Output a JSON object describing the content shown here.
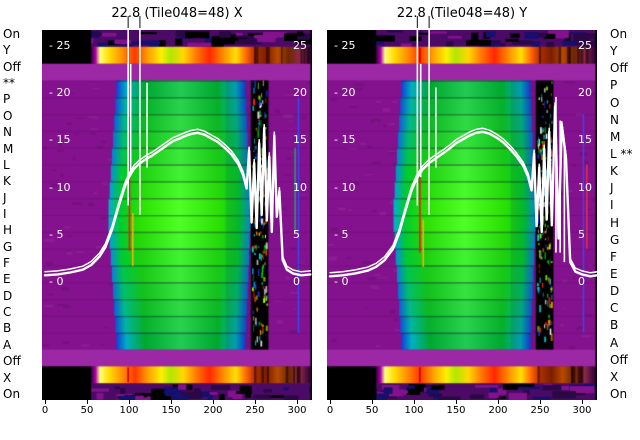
{
  "figure": {
    "bg_color": "#ffffff",
    "titles": [
      "22.8 (Tile048=48) X",
      "22.8 (Tile048=48) Y"
    ],
    "left_row_labels": [
      "On",
      "Y",
      "Off",
      "**",
      "P",
      "O",
      "N",
      "M",
      "L",
      "K",
      "J",
      "I",
      "H",
      "G",
      "F",
      "E",
      "D",
      "C",
      "B",
      "A",
      "Off",
      "X",
      "On"
    ],
    "right_row_labels": [
      "On",
      "Y",
      "Off",
      "P",
      "O",
      "N",
      "M",
      "L **",
      "K",
      "J",
      "I",
      "H",
      "G",
      "F",
      "E",
      "D",
      "C",
      "B",
      "A",
      "Off",
      "X",
      "On"
    ],
    "y_tick_values": [
      25,
      20,
      15,
      10,
      5,
      0
    ],
    "y_tick_labels_inner": [
      "- 25",
      "- 20",
      "- 15",
      "- 10",
      "- 5",
      "- 0"
    ],
    "y_tick_labels_edge": [
      "25",
      "20",
      "15",
      "10",
      "5",
      "0"
    ],
    "x_tick_values": [
      0,
      50,
      100,
      150,
      200,
      250,
      300
    ],
    "x_tick_labels": [
      "0",
      "50",
      "100",
      "150",
      "200",
      "250",
      "300"
    ]
  },
  "heatmap": {
    "row_count": 22,
    "green_x": [
      75,
      245
    ],
    "band_x": [
      245,
      266
    ],
    "right_edge_x": 316,
    "left_black_x": 55,
    "colors": {
      "purple": "#84128e",
      "purple_light": "#9d28a6",
      "on_base": "#4b0a66",
      "black": "#000000",
      "blob_edge_outer": "#1040d8",
      "blob_edge_inner": "#00b8d8",
      "blob_mid_outer": "#00b0c0",
      "blob_mid_inner": "#00cc30",
      "blob_center_outer": "#00a830",
      "blob_center_inner": "#2fe400",
      "speckles": [
        "#00d000",
        "#00a0ff",
        "#ff2000",
        "#00e0e0",
        "#ff9000",
        "#2040ff",
        "#a0ff00",
        "#ffffff"
      ]
    },
    "rainbow_stops": [
      [
        0,
        "#38003a"
      ],
      [
        0.02,
        "#b000b0"
      ],
      [
        0.04,
        "#ffff80"
      ],
      [
        0.08,
        "#ffe000"
      ],
      [
        0.14,
        "#ff9000"
      ],
      [
        0.2,
        "#ff3800"
      ],
      [
        0.26,
        "#ffa000"
      ],
      [
        0.32,
        "#fff000"
      ],
      [
        0.36,
        "#b0e800"
      ],
      [
        0.42,
        "#ffd800"
      ],
      [
        0.48,
        "#ff7800"
      ],
      [
        0.54,
        "#ff2800"
      ],
      [
        0.6,
        "#ff8800"
      ],
      [
        0.66,
        "#ffe000"
      ],
      [
        0.71,
        "#ff6000"
      ],
      [
        0.745,
        "#b03000"
      ],
      [
        0.8,
        "#7c1e00"
      ],
      [
        0.85,
        "#b84a00"
      ],
      [
        0.9,
        "#6e2800"
      ],
      [
        0.95,
        "#8c2a4a"
      ],
      [
        1,
        "#320038"
      ]
    ]
  },
  "chart_data": [
    {
      "type": "heatmap",
      "title": "22.8 (Tile048=48) X",
      "x_range": [
        0,
        320
      ],
      "line_y_range": [
        0,
        25
      ],
      "x_ticks": [
        0,
        50,
        100,
        150,
        200,
        250,
        300
      ],
      "y_ticks": [
        25,
        20,
        15,
        10,
        5,
        0
      ],
      "rows": [
        "On",
        "Y",
        "Off",
        "P",
        "O",
        "N",
        "M",
        "L",
        "K",
        "J",
        "I",
        "H",
        "G",
        "F",
        "E",
        "D",
        "C",
        "B",
        "A",
        "Off",
        "X",
        "On"
      ],
      "line": {
        "x": [
          0,
          15,
          30,
          45,
          55,
          65,
          72,
          80,
          88,
          95,
          100,
          106,
          112,
          120,
          128,
          136,
          144,
          152,
          160,
          168,
          175,
          182,
          190,
          198,
          206,
          214,
          222,
          230,
          236,
          240,
          243,
          246,
          249,
          252,
          255,
          258,
          261,
          264,
          267,
          270,
          273,
          276,
          279,
          283,
          288,
          295,
          305,
          316
        ],
        "y": [
          0.6,
          0.7,
          0.9,
          1.2,
          1.7,
          2.6,
          3.6,
          5.5,
          8.0,
          10.0,
          11.0,
          11.9,
          12.4,
          12.9,
          13.3,
          13.8,
          14.3,
          14.8,
          15.1,
          15.4,
          15.6,
          15.7,
          15.5,
          15.1,
          14.7,
          14.1,
          13.4,
          12.4,
          11.2,
          9.8,
          13.8,
          6.2,
          12.5,
          5.6,
          14.6,
          7.0,
          16.2,
          6.4,
          13.2,
          5.2,
          15.4,
          6.8,
          9.5,
          2.2,
          1.2,
          0.8,
          0.6,
          0.7
        ]
      },
      "spikes": [
        {
          "x": 99,
          "v0": 8,
          "v1": 26.6
        },
        {
          "x": 102,
          "v0": 11.5,
          "v1": 23
        },
        {
          "x": 113,
          "v0": 7,
          "v1": 26.6
        },
        {
          "x": 121.5,
          "v0": 12,
          "v1": 21
        }
      ],
      "overflow_marks": [
        99,
        113
      ],
      "rfi_lines": [
        {
          "x": 100.5,
          "v0": 3.2,
          "v1": 17.4,
          "color": "#ff1010"
        },
        {
          "x": 104.5,
          "v0": 1.6,
          "v1": 7.2,
          "color": "#ffb000"
        }
      ],
      "right_lines": [
        {
          "x": 301,
          "r0": 4,
          "r1": 18,
          "color": "#2850ff"
        },
        {
          "x": 297,
          "r0": 7,
          "r1": 12,
          "color": "#00c060"
        }
      ],
      "band_tick_x": [
        99
      ],
      "seed": 11
    },
    {
      "type": "heatmap",
      "title": "22.8 (Tile048=48) Y",
      "x_range": [
        0,
        320
      ],
      "line_y_range": [
        0,
        25
      ],
      "x_ticks": [
        0,
        50,
        100,
        150,
        200,
        250,
        300
      ],
      "y_ticks": [
        25,
        20,
        15,
        10,
        5,
        0
      ],
      "rows": [
        "On",
        "Y",
        "Off",
        "P",
        "O",
        "N",
        "M",
        "L",
        "K",
        "J",
        "I",
        "H",
        "G",
        "F",
        "E",
        "D",
        "C",
        "B",
        "A",
        "Off",
        "X",
        "On"
      ],
      "line": {
        "x": [
          0,
          15,
          30,
          45,
          55,
          65,
          75,
          82,
          90,
          97,
          103,
          110,
          118,
          126,
          134,
          142,
          150,
          158,
          166,
          174,
          182,
          190,
          198,
          206,
          214,
          222,
          230,
          236,
          240,
          243,
          246,
          249,
          252,
          255,
          258,
          261,
          264,
          268,
          272,
          276,
          281,
          286,
          292,
          300,
          310,
          318
        ],
        "y": [
          0.5,
          0.6,
          0.8,
          1.1,
          1.5,
          2.2,
          3.4,
          5.0,
          7.5,
          9.6,
          10.8,
          11.8,
          12.5,
          13.0,
          13.5,
          14.0,
          14.6,
          15.0,
          15.4,
          15.7,
          15.8,
          15.6,
          15.2,
          14.7,
          14.0,
          13.2,
          12.2,
          11.0,
          9.6,
          13.5,
          5.8,
          12.0,
          5.2,
          14.0,
          6.5,
          15.8,
          5.9,
          18.5,
          4.5,
          16.5,
          13.0,
          2.0,
          1.0,
          0.7,
          0.5,
          0.6
        ]
      },
      "spikes": [
        {
          "x": 104,
          "v0": 8,
          "v1": 26.6
        },
        {
          "x": 108,
          "v0": 11,
          "v1": 23
        },
        {
          "x": 118,
          "v0": 7,
          "v1": 26.6
        },
        {
          "x": 126,
          "v0": 12,
          "v1": 20.5
        },
        {
          "x": 269,
          "v0": 3,
          "v1": 19.5
        },
        {
          "x": 274,
          "v0": 3,
          "v1": 17
        },
        {
          "x": 279,
          "v0": 2,
          "v1": 14
        }
      ],
      "overflow_marks": [
        104,
        118
      ],
      "rfi_lines": [
        {
          "x": 107,
          "v0": 3.0,
          "v1": 17.0,
          "color": "#ff1010"
        },
        {
          "x": 111,
          "v0": 1.5,
          "v1": 6.5,
          "color": "#ffb000"
        }
      ],
      "right_lines": [
        {
          "x": 301,
          "r0": 5,
          "r1": 18,
          "color": "#2850ff"
        },
        {
          "x": 305,
          "r0": 8,
          "r1": 13,
          "color": "#ff3030"
        }
      ],
      "band_tick_x": [
        107
      ],
      "seed": 29
    }
  ]
}
